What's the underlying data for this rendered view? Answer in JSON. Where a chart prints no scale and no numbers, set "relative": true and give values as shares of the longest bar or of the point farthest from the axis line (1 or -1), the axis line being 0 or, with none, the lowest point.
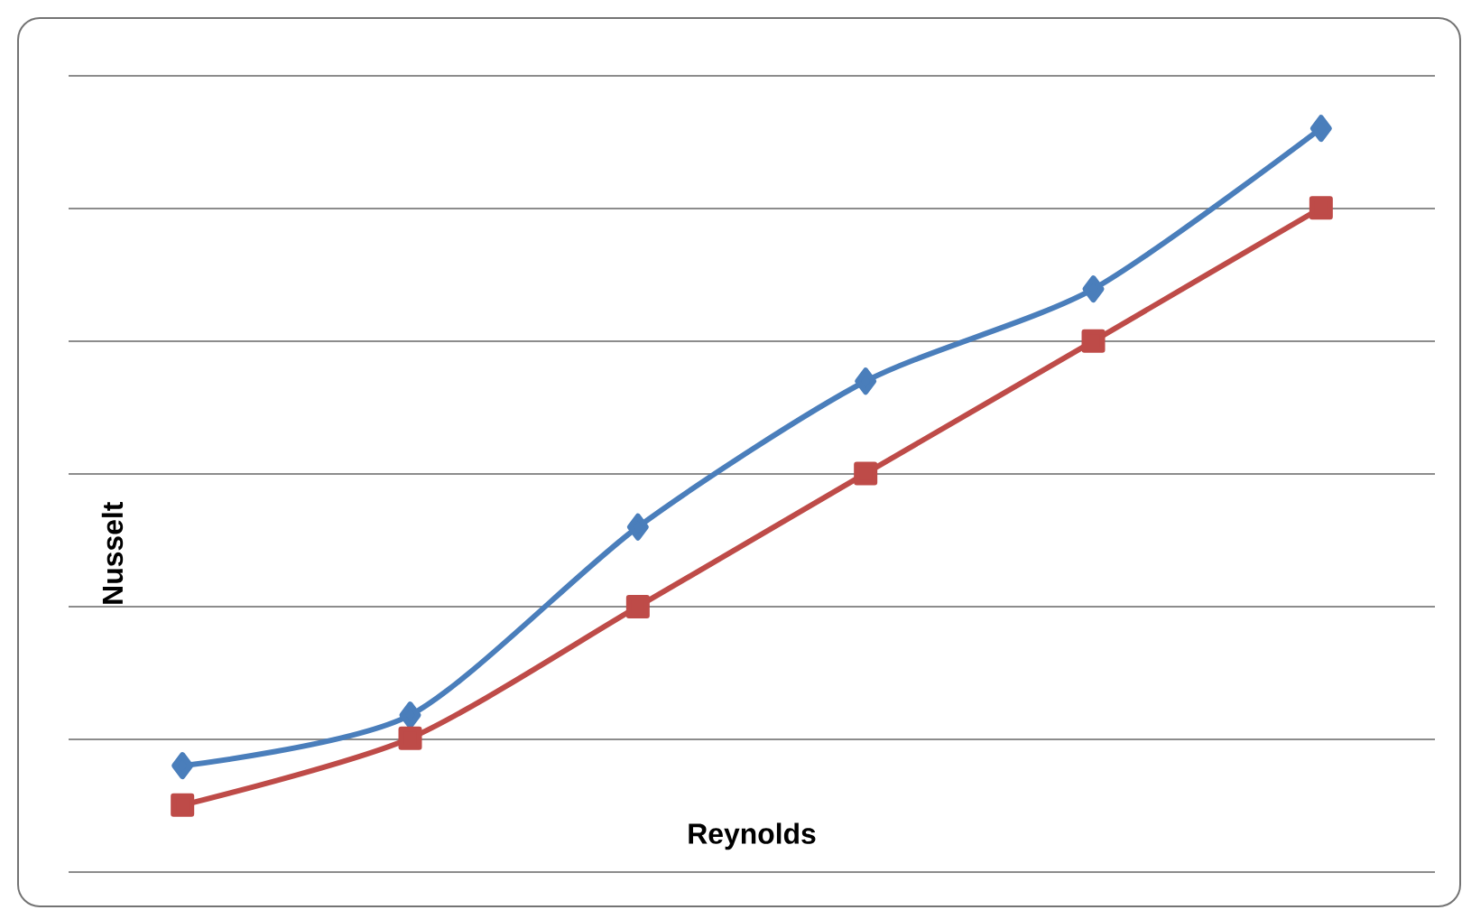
{
  "chart_data": {
    "type": "line",
    "relative": true,
    "xlabel": "Reynolds",
    "ylabel": "Nusselt",
    "grid": "y",
    "categories": [
      null,
      null,
      null,
      null,
      null,
      null
    ],
    "series": [
      {
        "color": "#4a7ebb",
        "marker": "diamond",
        "values": [
          0.143,
          0.211,
          0.464,
          0.66,
          0.784,
          1.0
        ]
      },
      {
        "color": "#be4b48",
        "marker": "square",
        "values": [
          0.09,
          0.18,
          0.357,
          0.536,
          0.714,
          0.893
        ]
      }
    ]
  }
}
